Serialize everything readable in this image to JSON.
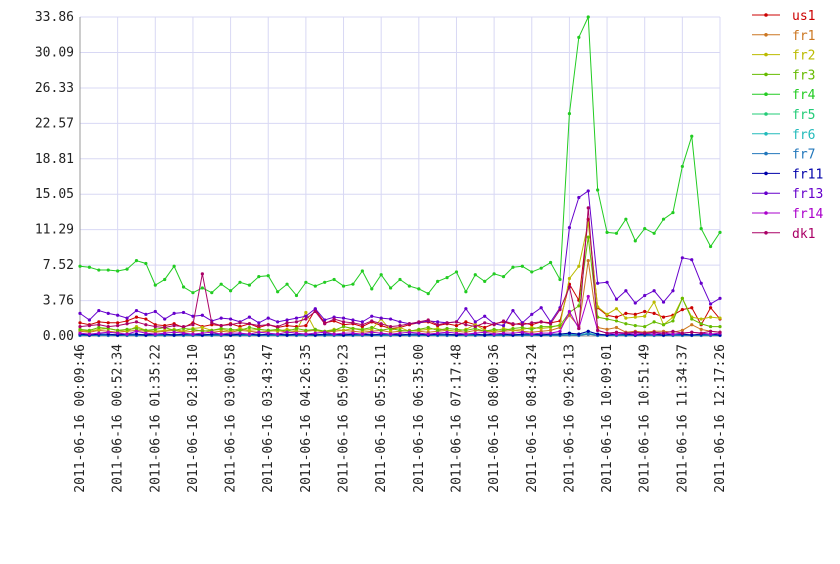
{
  "chart_data": {
    "type": "line",
    "grid": true,
    "legend": "right",
    "ylim": [
      0,
      33.86
    ],
    "yticks": [
      {
        "value": 0,
        "label": "0.00"
      },
      3.76,
      7.52,
      11.29,
      15.05,
      18.81,
      22.57,
      26.33,
      30.09,
      33.86
    ],
    "categories": [
      "2011-06-16 00:09:46",
      null,
      null,
      null,
      "2011-06-16 00:52:34",
      null,
      null,
      null,
      "2011-06-16 01:35:22",
      null,
      null,
      null,
      "2011-06-16 02:18:10",
      null,
      null,
      null,
      "2011-06-16 03:00:58",
      null,
      null,
      null,
      "2011-06-16 03:43:47",
      null,
      null,
      null,
      "2011-06-16 04:26:35",
      null,
      null,
      null,
      "2011-06-16 05:09:23",
      null,
      null,
      null,
      "2011-06-16 05:52:11",
      null,
      null,
      null,
      "2011-06-16 06:35:00",
      null,
      null,
      null,
      "2011-06-16 07:17:48",
      null,
      null,
      null,
      "2011-06-16 08:00:36",
      null,
      null,
      null,
      "2011-06-16 08:43:24",
      null,
      null,
      null,
      "2011-06-16 09:26:13",
      null,
      null,
      null,
      "2011-06-16 10:09:01",
      null,
      null,
      null,
      "2011-06-16 10:51:49",
      null,
      null,
      null,
      "2011-06-16 11:34:37",
      null,
      null,
      null,
      "2011-06-16 12:17:26"
    ],
    "series": [
      {
        "name": "us1",
        "color": "#cc0000",
        "values": [
          1.4,
          1.2,
          1.5,
          1.4,
          1.4,
          1.6,
          2.0,
          1.8,
          1.2,
          1.1,
          1.3,
          0.9,
          1.4,
          1.0,
          1.2,
          1.1,
          1.3,
          1.0,
          1.3,
          0.9,
          1.2,
          0.9,
          1.1,
          1.0,
          1.1,
          2.8,
          1.4,
          1.6,
          1.2,
          1.3,
          1.0,
          1.5,
          1.1,
          0.8,
          0.9,
          1.2,
          1.4,
          1.5,
          1.1,
          1.3,
          1.1,
          1.5,
          1.2,
          0.9,
          1.3,
          1.5,
          1.2,
          1.4,
          1.2,
          1.5,
          1.4,
          1.6,
          5.5,
          3.8,
          12.4,
          3.0,
          2.2,
          2.0,
          2.4,
          2.3,
          2.6,
          2.4,
          2.0,
          2.2,
          2.8,
          3.0,
          1.2,
          3.0,
          1.8
        ]
      },
      {
        "name": "fr1",
        "color": "#cc7722",
        "values": [
          0.5,
          0.4,
          0.6,
          0.5,
          0.4,
          0.5,
          0.6,
          0.5,
          0.4,
          0.5,
          0.6,
          0.4,
          0.5,
          0.6,
          0.4,
          0.5,
          0.4,
          0.6,
          0.5,
          0.4,
          0.5,
          0.6,
          0.4,
          0.5,
          0.5,
          0.6,
          0.4,
          0.5,
          0.6,
          0.5,
          0.4,
          0.5,
          0.6,
          0.4,
          0.5,
          0.6,
          0.5,
          0.4,
          0.5,
          0.6,
          0.5,
          0.4,
          0.6,
          0.5,
          0.4,
          0.5,
          0.6,
          0.5,
          0.4,
          0.5,
          0.6,
          0.9,
          2.2,
          1.0,
          8.0,
          0.9,
          0.7,
          0.9,
          0.4,
          0.5,
          0.4,
          0.5,
          0.5,
          0.4,
          0.6,
          1.2,
          0.7,
          0.5,
          0.4
        ]
      },
      {
        "name": "fr2",
        "color": "#bbbb00",
        "values": [
          0.6,
          0.5,
          0.7,
          0.8,
          0.6,
          0.5,
          1.0,
          0.6,
          0.5,
          0.6,
          0.7,
          0.5,
          0.8,
          0.9,
          0.6,
          0.7,
          0.5,
          0.8,
          0.6,
          0.7,
          0.6,
          0.5,
          0.7,
          0.6,
          2.5,
          0.6,
          0.5,
          0.7,
          0.6,
          0.8,
          0.6,
          0.7,
          1.8,
          0.6,
          0.9,
          0.5,
          0.6,
          0.7,
          0.8,
          0.6,
          0.5,
          0.7,
          1.2,
          0.6,
          0.5,
          0.8,
          0.6,
          0.7,
          0.9,
          0.8,
          0.9,
          1.2,
          6.1,
          7.4,
          12.0,
          3.1,
          2.3,
          2.9,
          1.9,
          2.0,
          2.1,
          3.6,
          1.2,
          2.0,
          4.0,
          2.0,
          1.8,
          2.0,
          1.9
        ]
      },
      {
        "name": "fr3",
        "color": "#66bb00",
        "values": [
          0.7,
          0.6,
          0.9,
          0.8,
          0.6,
          0.7,
          0.8,
          0.6,
          0.7,
          0.9,
          0.6,
          0.8,
          0.7,
          0.5,
          0.6,
          0.8,
          0.7,
          0.6,
          0.9,
          0.7,
          0.6,
          0.7,
          0.5,
          0.8,
          0.6,
          0.7,
          0.5,
          0.6,
          1.0,
          0.8,
          0.7,
          0.9,
          0.6,
          0.8,
          0.6,
          0.5,
          0.7,
          0.9,
          0.6,
          0.8,
          0.7,
          0.6,
          0.8,
          0.5,
          0.7,
          0.6,
          0.8,
          0.9,
          0.7,
          1.0,
          1.0,
          1.1,
          2.5,
          3.2,
          10.5,
          2.0,
          1.8,
          1.6,
          1.3,
          1.1,
          1.0,
          1.5,
          1.2,
          1.6,
          4.0,
          1.8,
          1.3,
          1.0,
          1.0
        ]
      },
      {
        "name": "fr4",
        "color": "#22cc22",
        "values": [
          7.4,
          7.3,
          7.0,
          7.0,
          6.9,
          7.1,
          8.0,
          7.7,
          5.4,
          6.0,
          7.4,
          5.2,
          4.6,
          5.1,
          4.6,
          5.5,
          4.8,
          5.7,
          5.4,
          6.3,
          6.4,
          4.7,
          5.5,
          4.3,
          5.7,
          5.3,
          5.7,
          6.0,
          5.3,
          5.5,
          6.9,
          5.0,
          6.5,
          5.1,
          6.0,
          5.3,
          5.0,
          4.5,
          5.8,
          6.2,
          6.8,
          4.7,
          6.5,
          5.8,
          6.6,
          6.3,
          7.3,
          7.4,
          6.8,
          7.2,
          7.8,
          6.0,
          23.6,
          31.7,
          33.86,
          15.5,
          11.0,
          10.9,
          12.4,
          10.1,
          11.4,
          10.9,
          12.4,
          13.1,
          18.0,
          21.2,
          11.4,
          9.5,
          11.0
        ]
      },
      {
        "name": "fr5",
        "color": "#22cc77",
        "values": [
          0.1,
          0.2,
          0.1,
          0.1,
          0.2,
          0.1,
          0.1,
          0.2,
          0.1,
          0.1,
          0.2,
          0.1,
          0.1,
          0.2,
          0.1,
          0.1,
          0.2,
          0.1,
          0.1,
          0.2,
          0.1,
          0.1,
          0.2,
          0.1,
          0.1,
          0.2,
          0.1,
          0.1,
          0.2,
          0.1,
          0.1,
          0.2,
          0.1,
          0.1,
          0.2,
          0.1,
          0.1,
          0.2,
          0.1,
          0.1,
          0.2,
          0.1,
          0.1,
          0.2,
          0.1,
          0.1,
          0.2,
          0.1,
          0.1,
          0.2,
          0.1,
          0.2,
          0.3,
          0.2,
          0.5,
          0.2,
          0.1,
          0.1,
          0.2,
          0.1,
          0.1,
          0.2,
          0.1,
          0.1,
          0.2,
          0.1,
          0.1,
          0.2,
          0.1
        ]
      },
      {
        "name": "fr6",
        "color": "#22bbbb",
        "values": [
          0.1,
          0.1,
          0.1,
          0.1,
          0.1,
          0.1,
          0.1,
          0.1,
          0.1,
          0.1,
          0.1,
          0.1,
          0.1,
          0.1,
          0.1,
          0.1,
          0.1,
          0.1,
          0.1,
          0.1,
          0.1,
          0.1,
          0.1,
          0.1,
          0.1,
          0.1,
          0.1,
          0.1,
          0.1,
          0.1,
          0.1,
          0.1,
          0.1,
          0.1,
          0.1,
          0.1,
          0.1,
          0.1,
          0.1,
          0.1,
          0.1,
          0.1,
          0.1,
          0.1,
          0.1,
          0.1,
          0.1,
          0.1,
          0.1,
          0.1,
          0.1,
          0.1,
          0.2,
          0.1,
          0.3,
          0.1,
          0.1,
          0.1,
          0.1,
          0.1,
          0.1,
          0.1,
          0.1,
          0.1,
          0.1,
          0.1,
          0.1,
          0.1,
          0.1
        ]
      },
      {
        "name": "fr7",
        "color": "#2277bb",
        "values": [
          0.05,
          0.05,
          0.05,
          0.05,
          0.05,
          0.05,
          0.05,
          0.05,
          0.05,
          0.05,
          0.05,
          0.05,
          0.05,
          0.05,
          0.05,
          0.05,
          0.05,
          0.05,
          0.05,
          0.05,
          0.05,
          0.05,
          0.05,
          0.05,
          0.05,
          0.05,
          0.05,
          0.05,
          0.05,
          0.05,
          0.05,
          0.05,
          0.05,
          0.05,
          0.05,
          0.05,
          0.05,
          0.05,
          0.05,
          0.05,
          0.05,
          0.05,
          0.05,
          0.05,
          0.05,
          0.05,
          0.05,
          0.05,
          0.05,
          0.05,
          0.05,
          0.05,
          0.1,
          0.05,
          0.2,
          0.05,
          0.05,
          0.05,
          0.05,
          0.05,
          0.05,
          0.05,
          0.05,
          0.05,
          0.05,
          0.05,
          0.05,
          0.05,
          0.05
        ]
      },
      {
        "name": "fr11",
        "color": "#0000aa",
        "values": [
          0.2,
          0.1,
          0.2,
          0.2,
          0.1,
          0.2,
          0.2,
          0.1,
          0.2,
          0.2,
          0.1,
          0.2,
          0.2,
          0.1,
          0.2,
          0.2,
          0.1,
          0.2,
          0.2,
          0.1,
          0.2,
          0.2,
          0.1,
          0.2,
          0.2,
          0.1,
          0.2,
          0.2,
          0.1,
          0.2,
          0.2,
          0.1,
          0.2,
          0.2,
          0.1,
          0.2,
          0.2,
          0.1,
          0.2,
          0.2,
          0.1,
          0.2,
          0.2,
          0.1,
          0.2,
          0.2,
          0.1,
          0.2,
          0.2,
          0.1,
          0.2,
          0.2,
          0.3,
          0.2,
          0.5,
          0.2,
          0.1,
          0.2,
          0.2,
          0.1,
          0.2,
          0.2,
          0.1,
          0.2,
          0.2,
          0.1,
          0.2,
          0.2,
          0.1
        ]
      },
      {
        "name": "fr13",
        "color": "#6600cc",
        "values": [
          2.4,
          1.7,
          2.7,
          2.4,
          2.2,
          1.9,
          2.7,
          2.3,
          2.6,
          1.8,
          2.4,
          2.5,
          2.1,
          2.2,
          1.6,
          1.9,
          1.8,
          1.5,
          2.0,
          1.4,
          1.9,
          1.5,
          1.7,
          1.9,
          2.1,
          2.9,
          1.7,
          2.0,
          1.9,
          1.7,
          1.5,
          2.1,
          1.9,
          1.8,
          1.5,
          1.3,
          1.4,
          1.6,
          1.5,
          1.4,
          1.5,
          2.9,
          1.5,
          2.1,
          1.3,
          1.1,
          2.7,
          1.4,
          2.3,
          3.0,
          1.5,
          3.0,
          11.5,
          14.7,
          15.4,
          5.6,
          5.7,
          3.9,
          4.8,
          3.5,
          4.3,
          4.8,
          3.6,
          4.8,
          8.3,
          8.1,
          5.6,
          3.4,
          4.0
        ]
      },
      {
        "name": "fr14",
        "color": "#aa00cc",
        "values": [
          0.3,
          0.2,
          0.3,
          0.4,
          0.3,
          0.2,
          0.5,
          0.3,
          0.2,
          0.3,
          0.4,
          0.3,
          0.2,
          0.3,
          0.4,
          0.2,
          0.3,
          0.3,
          0.2,
          0.4,
          0.3,
          0.2,
          0.4,
          0.3,
          0.2,
          0.3,
          0.4,
          0.2,
          0.3,
          0.3,
          0.2,
          0.4,
          0.3,
          0.2,
          0.3,
          0.4,
          0.3,
          0.2,
          0.3,
          0.4,
          0.3,
          0.2,
          0.3,
          0.4,
          0.2,
          0.3,
          0.3,
          0.4,
          0.2,
          0.3,
          0.3,
          0.5,
          2.6,
          0.8,
          4.2,
          0.6,
          0.3,
          0.2,
          0.3,
          0.2,
          0.3,
          0.2,
          0.3,
          0.2,
          0.3,
          0.4,
          0.3,
          0.2,
          0.3
        ]
      },
      {
        "name": "dk1",
        "color": "#aa0066",
        "values": [
          1.0,
          1.1,
          1.2,
          1.0,
          1.1,
          1.3,
          1.5,
          1.2,
          1.0,
          0.9,
          1.1,
          1.0,
          1.2,
          6.6,
          1.4,
          1.1,
          1.2,
          1.4,
          1.3,
          1.1,
          1.2,
          1.0,
          1.4,
          1.5,
          1.8,
          2.6,
          1.3,
          1.8,
          1.5,
          1.4,
          1.2,
          1.6,
          1.3,
          1.0,
          1.1,
          1.3,
          1.5,
          1.7,
          1.2,
          1.4,
          1.5,
          1.2,
          1.0,
          1.4,
          1.2,
          1.6,
          1.3,
          1.2,
          1.4,
          1.5,
          1.3,
          2.8,
          5.2,
          0.8,
          13.6,
          0.6,
          0.3,
          0.4,
          0.3,
          0.4,
          0.3,
          0.4,
          0.3,
          0.5,
          0.3,
          0.4,
          0.3,
          0.5,
          0.4
        ]
      }
    ]
  }
}
